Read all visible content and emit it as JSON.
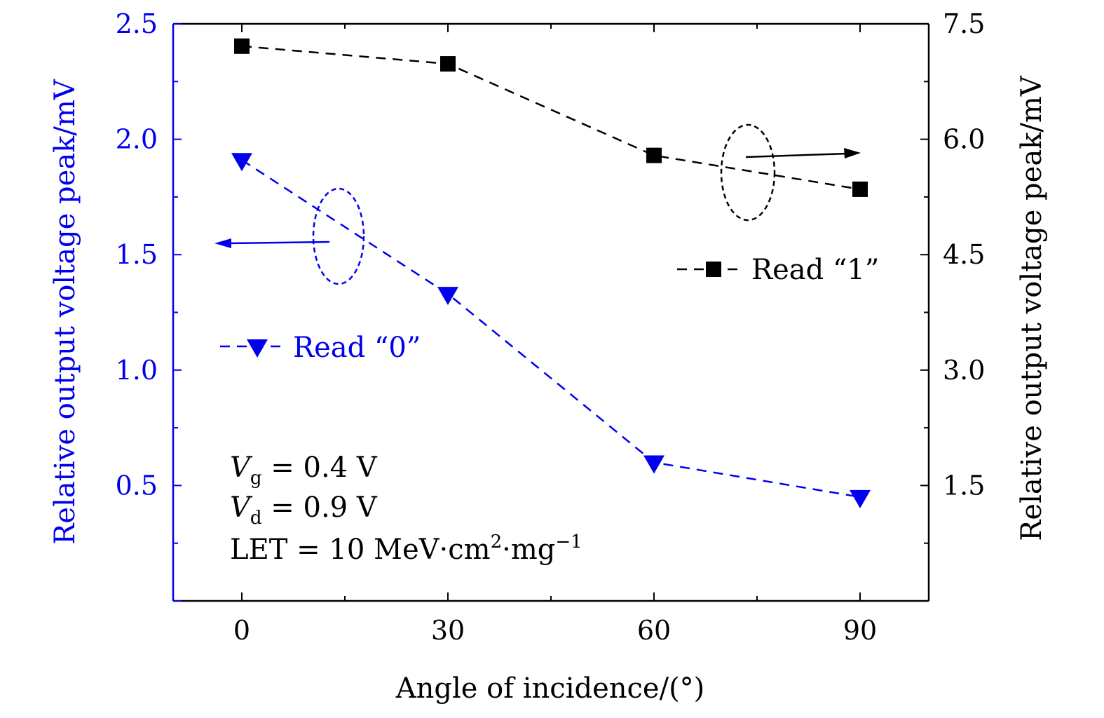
{
  "chart_data": {
    "type": "line",
    "title": "",
    "xlabel": "Angle of incidence/(°)",
    "ylabel_left": "Relative output voltage peak/mV",
    "ylabel_right": "Relative output voltage peak/mV",
    "xlim": [
      -10,
      100
    ],
    "ylim_left": [
      0.0,
      2.5
    ],
    "ylim_right": [
      0.0,
      7.5
    ],
    "x_ticks": [
      "0",
      "30",
      "60",
      "90"
    ],
    "y_ticks_left": [
      "0.5",
      "1.0",
      "1.5",
      "2.0",
      "2.5"
    ],
    "y_ticks_right": [
      "1.5",
      "3.0",
      "4.5",
      "6.0",
      "7.5"
    ],
    "series": [
      {
        "name": "Read “0”",
        "axis": "left",
        "color": "#0000ee",
        "marker": "triangle-down",
        "line": "dashed",
        "x": [
          0,
          30,
          60,
          90
        ],
        "y": [
          1.91,
          1.33,
          0.6,
          0.45
        ]
      },
      {
        "name": "Read “1”",
        "axis": "right",
        "color": "#000000",
        "marker": "square",
        "line": "dashed",
        "x": [
          0,
          30,
          60,
          90
        ],
        "y": [
          7.21,
          6.98,
          5.79,
          5.35
        ]
      }
    ],
    "annotations": {
      "line1_var": "V",
      "line1_sub": "g",
      "line1_rest": " = 0.4  V",
      "line2_var": "V",
      "line2_sub": "d",
      "line2_rest": " = 0.9  V",
      "line3_main": "LET = 10  MeV·cm",
      "line3_sup1": "2",
      "line3_mid": "·mg",
      "line3_sup2": "−1"
    },
    "grid": false,
    "legend": "inside-right"
  }
}
